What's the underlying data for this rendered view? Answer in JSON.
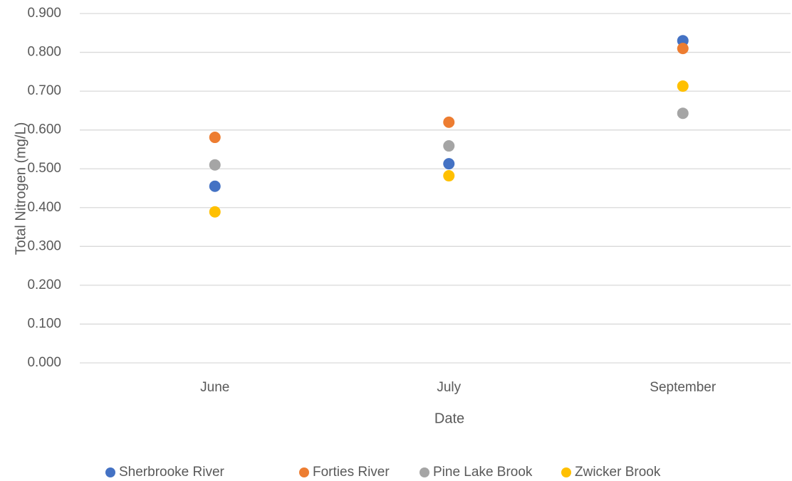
{
  "chart_data": {
    "type": "scatter",
    "x_label": "Date",
    "y_label": "Total Nitrogen (mg/L)",
    "categories": [
      "June",
      "July",
      "September"
    ],
    "series": [
      {
        "name": "Sherbrooke River",
        "color": "#4472c4",
        "values": [
          0.455,
          0.513,
          0.83
        ]
      },
      {
        "name": "Forties River",
        "color": "#ed7d31",
        "values": [
          0.581,
          0.62,
          0.81
        ]
      },
      {
        "name": "Pine Lake Brook",
        "color": "#a5a5a5",
        "values": [
          0.51,
          0.559,
          0.643
        ]
      },
      {
        "name": "Zwicker Brook",
        "color": "#ffc000",
        "values": [
          0.389,
          0.482,
          0.713
        ]
      }
    ],
    "ylim": [
      0,
      0.9
    ],
    "yticks": [
      {
        "value": 0,
        "label": "0.000"
      },
      {
        "value": 0.1,
        "label": "0.100"
      },
      {
        "value": 0.2,
        "label": "0.200"
      },
      {
        "value": 0.3,
        "label": "0.300"
      },
      {
        "value": 0.4,
        "label": "0.400"
      },
      {
        "value": 0.5,
        "label": "0.500"
      },
      {
        "value": 0.6,
        "label": "0.600"
      },
      {
        "value": 0.7,
        "label": "0.700"
      },
      {
        "value": 0.8,
        "label": "0.800"
      },
      {
        "value": 0.9,
        "label": "0.900"
      }
    ],
    "grid": true,
    "legend": "bottom"
  }
}
